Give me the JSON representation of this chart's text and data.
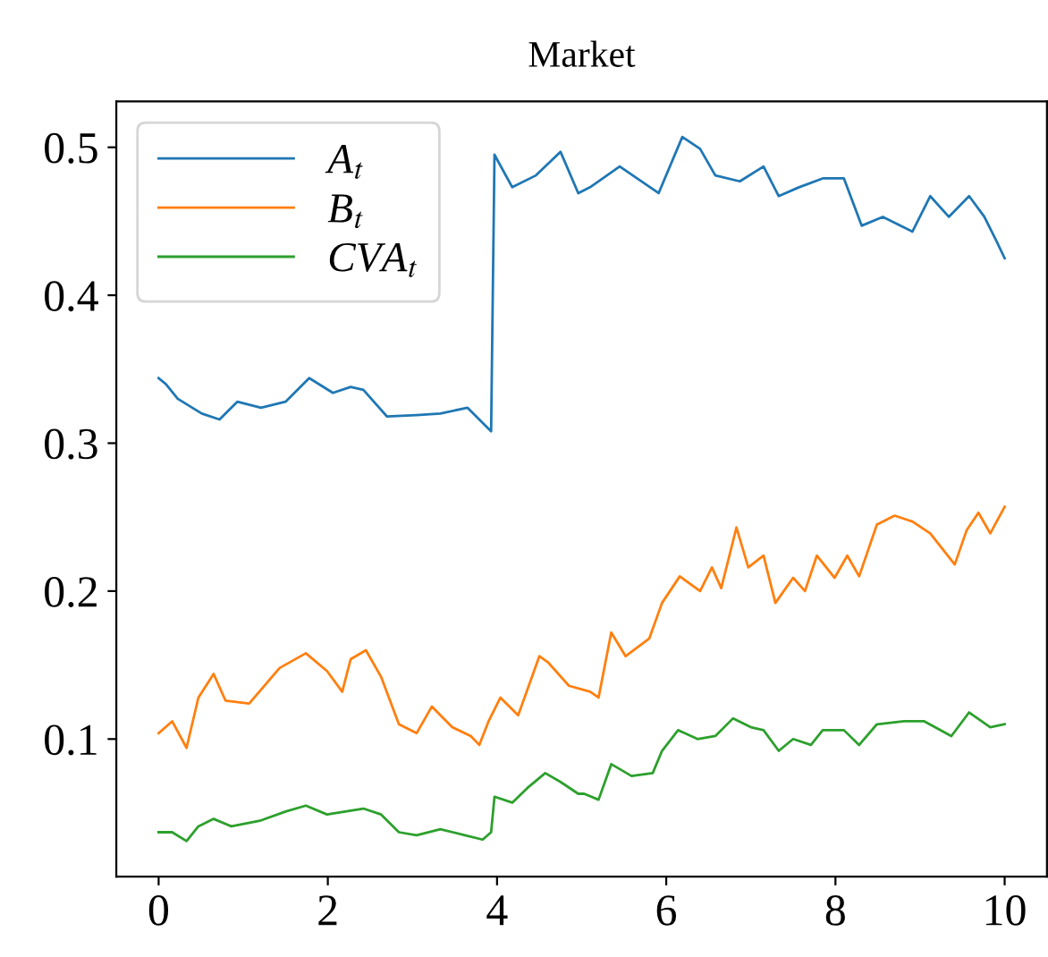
{
  "chart_data": {
    "type": "line",
    "title": "Market",
    "xlim": [
      -0.5,
      10.5
    ],
    "ylim": [
      0.007,
      0.531
    ],
    "xticks": [
      0,
      2,
      4,
      6,
      8,
      10
    ],
    "yticks": [
      0.1,
      0.2,
      0.3,
      0.4,
      0.5
    ],
    "grid": false,
    "legend": "top left",
    "marker": "none",
    "line_style": "solid",
    "series": [
      {
        "name": "A$_{t}$",
        "color": "#1f77b4",
        "x": [
          0,
          0.085,
          0.226,
          0.51,
          0.72,
          0.93,
          1.21,
          1.5,
          1.78,
          2.06,
          2.27,
          2.42,
          2.7,
          3.05,
          3.33,
          3.65,
          3.93,
          3.97,
          4.18,
          4.46,
          4.75,
          4.96,
          5.1,
          5.45,
          5.91,
          6.19,
          6.4,
          6.58,
          6.87,
          7.15,
          7.33,
          7.57,
          7.85,
          8.1,
          8.31,
          8.56,
          8.91,
          9.12,
          9.34,
          9.58,
          9.76,
          9.9,
          10.0
        ],
        "values": [
          0.344,
          0.34,
          0.33,
          0.32,
          0.316,
          0.328,
          0.324,
          0.328,
          0.344,
          0.334,
          0.338,
          0.336,
          0.318,
          0.319,
          0.32,
          0.324,
          0.308,
          0.495,
          0.473,
          0.481,
          0.497,
          0.469,
          0.473,
          0.487,
          0.469,
          0.507,
          0.499,
          0.481,
          0.477,
          0.487,
          0.467,
          0.473,
          0.479,
          0.479,
          0.447,
          0.453,
          0.443,
          0.467,
          0.453,
          0.467,
          0.453,
          0.437,
          0.425
        ]
      },
      {
        "name": "B$_{t}$",
        "color": "#ff7f0e",
        "x": [
          0,
          0.16,
          0.33,
          0.47,
          0.65,
          0.79,
          1.07,
          1.43,
          1.74,
          1.99,
          2.17,
          2.27,
          2.45,
          2.63,
          2.84,
          3.05,
          3.23,
          3.47,
          3.69,
          3.79,
          3.9,
          4.04,
          4.25,
          4.5,
          4.6,
          4.85,
          5.1,
          5.2,
          5.35,
          5.52,
          5.8,
          5.95,
          6.16,
          6.4,
          6.54,
          6.65,
          6.83,
          6.97,
          7.15,
          7.29,
          7.5,
          7.64,
          7.78,
          7.99,
          8.14,
          8.28,
          8.49,
          8.7,
          8.91,
          9.12,
          9.41,
          9.55,
          9.69,
          9.83,
          10.0
        ],
        "values": [
          0.104,
          0.112,
          0.094,
          0.128,
          0.144,
          0.126,
          0.124,
          0.148,
          0.158,
          0.146,
          0.132,
          0.154,
          0.16,
          0.142,
          0.11,
          0.104,
          0.122,
          0.108,
          0.102,
          0.096,
          0.112,
          0.128,
          0.116,
          0.156,
          0.152,
          0.136,
          0.132,
          0.128,
          0.172,
          0.156,
          0.168,
          0.192,
          0.21,
          0.2,
          0.216,
          0.202,
          0.243,
          0.216,
          0.224,
          0.192,
          0.209,
          0.2,
          0.224,
          0.209,
          0.224,
          0.21,
          0.245,
          0.251,
          0.247,
          0.239,
          0.218,
          0.241,
          0.253,
          0.239,
          0.257
        ]
      },
      {
        "name": "CVA$_{t}$",
        "color": "#2ca02c",
        "x": [
          0,
          0.16,
          0.33,
          0.47,
          0.65,
          0.86,
          1.21,
          1.5,
          1.74,
          1.99,
          2.42,
          2.63,
          2.84,
          3.05,
          3.33,
          3.62,
          3.83,
          3.93,
          3.97,
          4.18,
          4.36,
          4.57,
          4.75,
          4.96,
          5.03,
          5.2,
          5.35,
          5.59,
          5.84,
          5.95,
          6.14,
          6.37,
          6.58,
          6.79,
          7.0,
          7.15,
          7.33,
          7.5,
          7.71,
          7.85,
          8.1,
          8.28,
          8.49,
          8.81,
          9.05,
          9.37,
          9.58,
          9.83,
          10.0
        ],
        "values": [
          0.037,
          0.037,
          0.031,
          0.041,
          0.046,
          0.041,
          0.045,
          0.051,
          0.055,
          0.049,
          0.053,
          0.049,
          0.037,
          0.035,
          0.039,
          0.035,
          0.032,
          0.037,
          0.061,
          0.057,
          0.067,
          0.077,
          0.071,
          0.063,
          0.063,
          0.059,
          0.083,
          0.075,
          0.077,
          0.092,
          0.106,
          0.1,
          0.102,
          0.114,
          0.108,
          0.106,
          0.092,
          0.1,
          0.096,
          0.106,
          0.106,
          0.096,
          0.11,
          0.112,
          0.112,
          0.102,
          0.118,
          0.108,
          0.11
        ]
      }
    ]
  }
}
